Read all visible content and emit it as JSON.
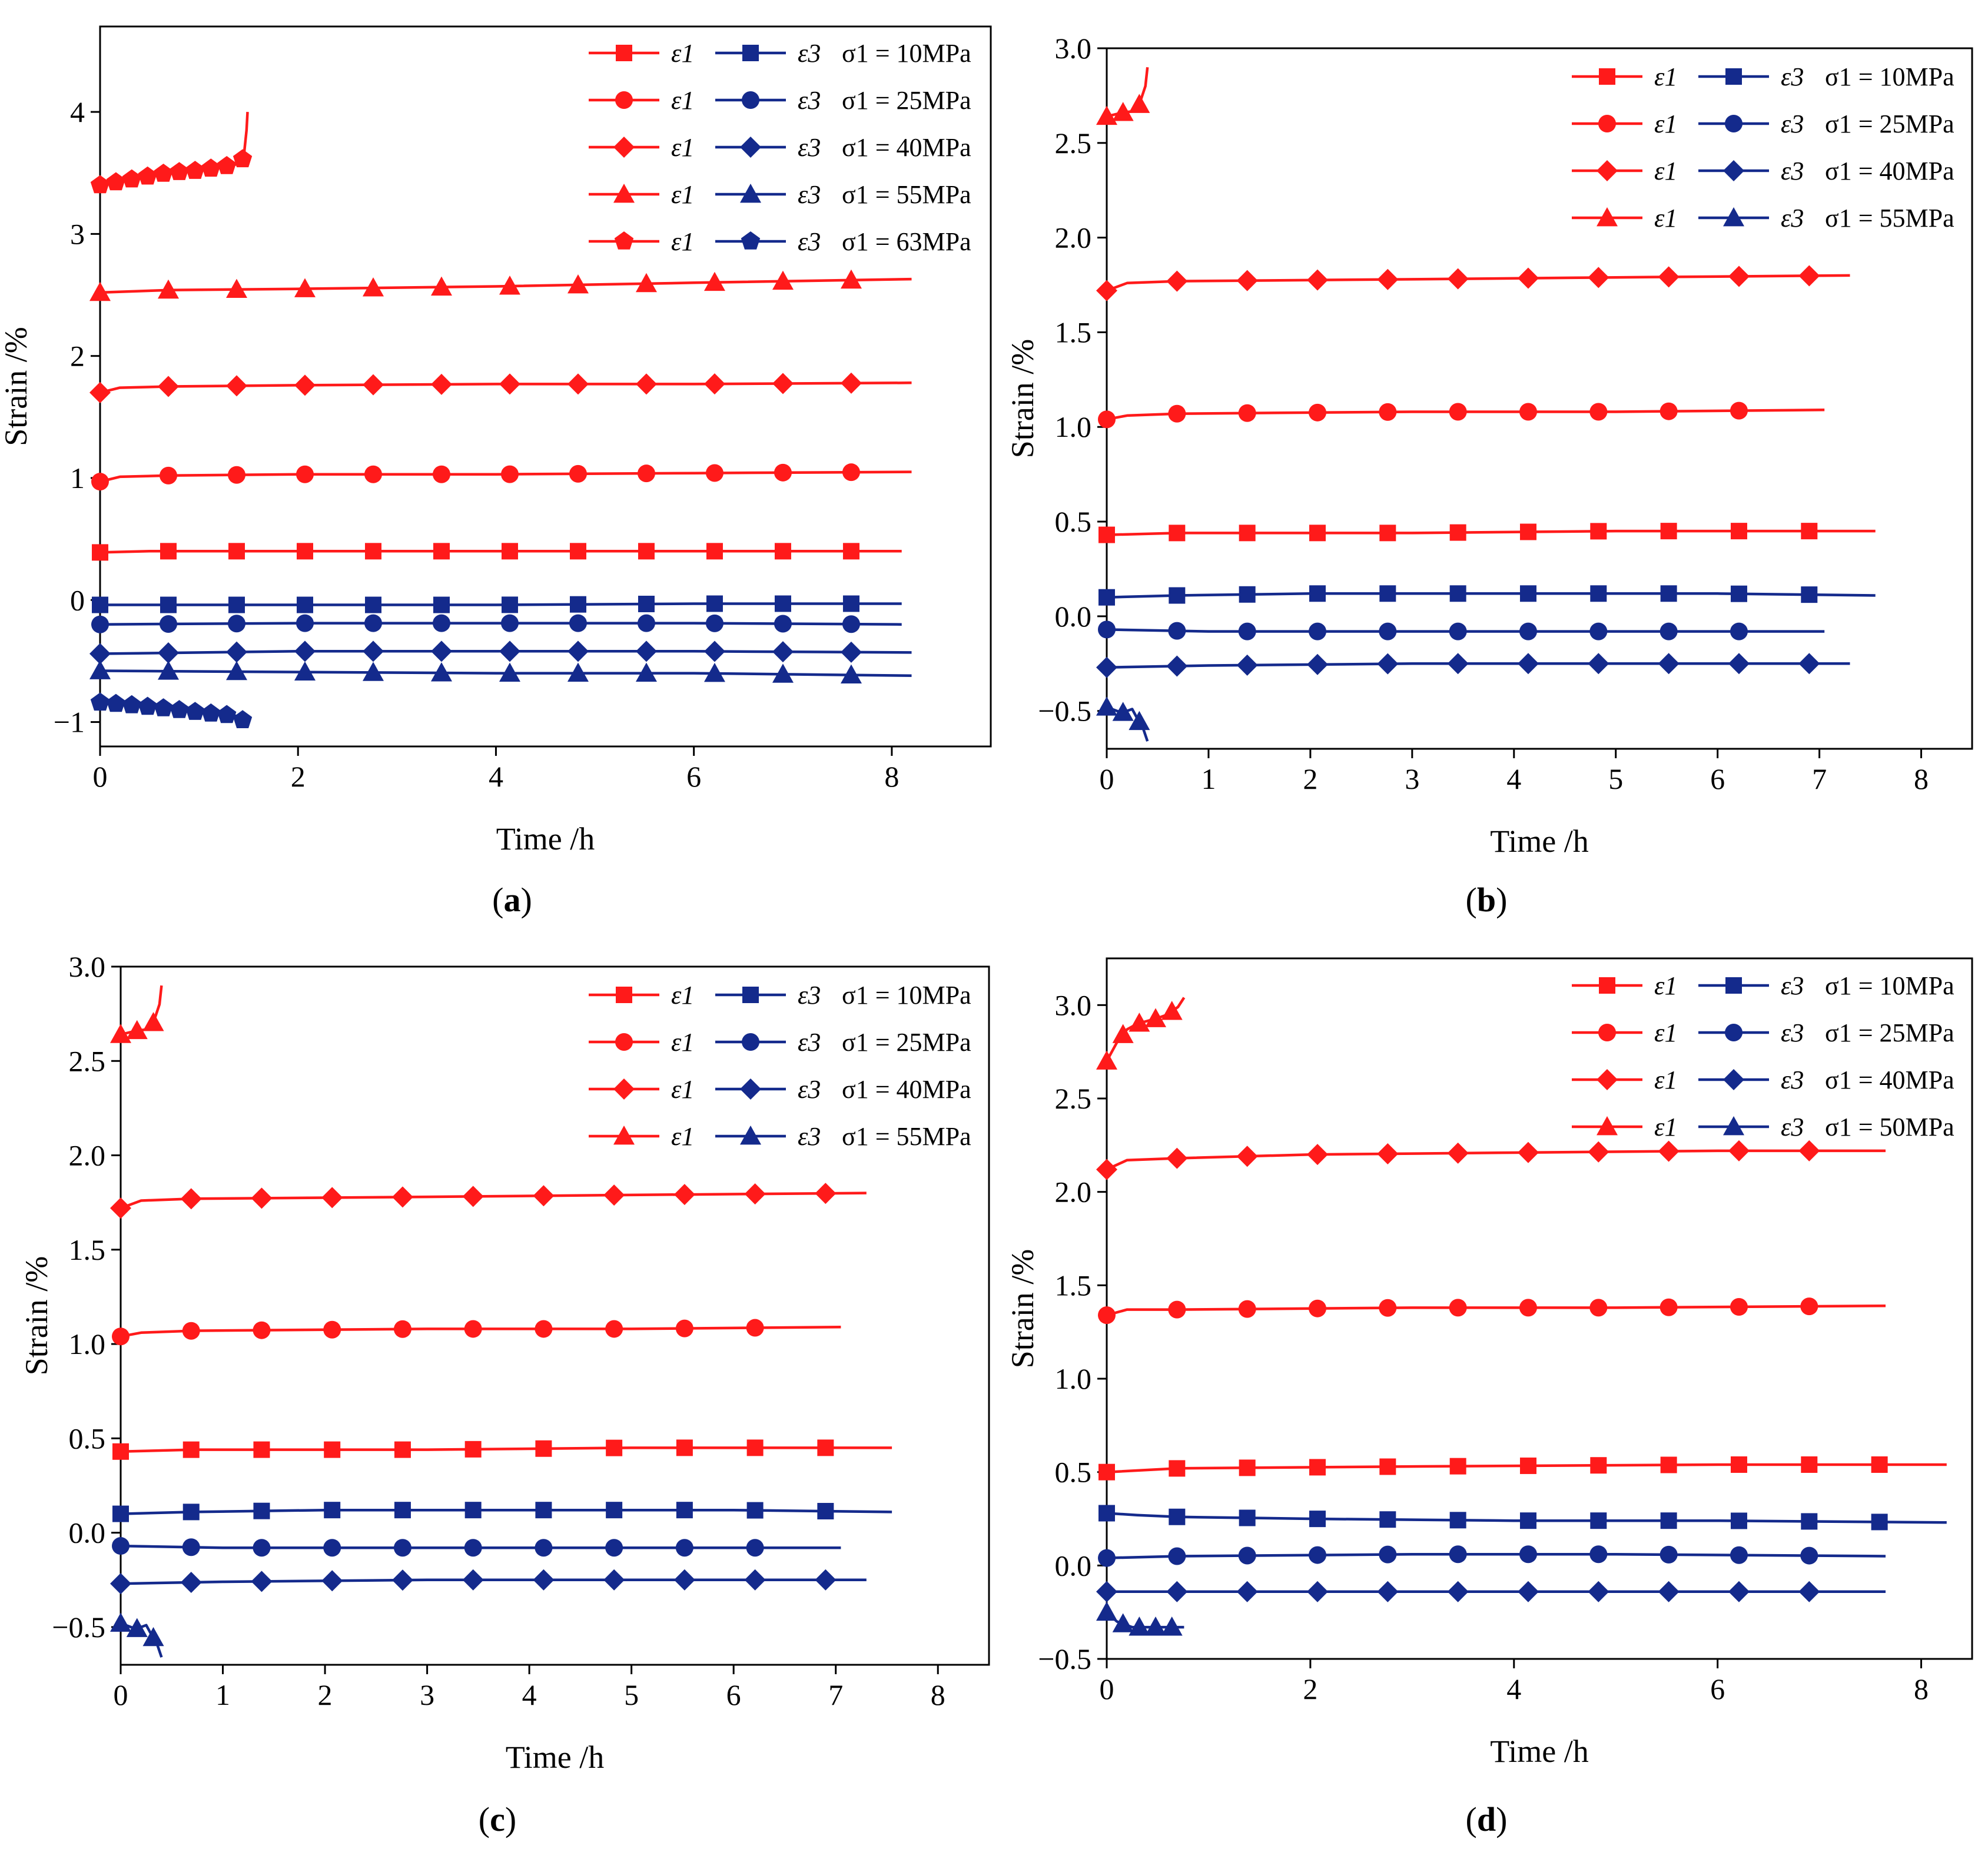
{
  "figure": {
    "colors": {
      "eps1": "#ff1a1a",
      "eps3": "#142a8c",
      "axis": "#000000"
    }
  },
  "chart_data": [
    {
      "id": "a",
      "panel_label": "a",
      "type": "line",
      "xlabel": "Time /h",
      "ylabel": "Strain /%",
      "xlim": [
        0,
        9.0
      ],
      "ylim": [
        -1.2,
        4.7
      ],
      "xticks": [
        "0",
        "2",
        "4",
        "6",
        "8"
      ],
      "yticks": [
        "−1",
        "0",
        "1",
        "2",
        "3",
        "4"
      ],
      "legend": [
        {
          "e1": "ε1",
          "e3": "ε3",
          "sigma": "σ1 = 10MPa",
          "marker": "square"
        },
        {
          "e1": "ε1",
          "e3": "ε3",
          "sigma": "σ1 = 25MPa",
          "marker": "circle"
        },
        {
          "e1": "ε1",
          "e3": "ε3",
          "sigma": "σ1 = 40MPa",
          "marker": "diamond"
        },
        {
          "e1": "ε1",
          "e3": "ε3",
          "sigma": "σ1 = 55MPa",
          "marker": "triangle"
        },
        {
          "e1": "ε1",
          "e3": "ε3",
          "sigma": "σ1 = 63MPa",
          "marker": "pentagon"
        }
      ],
      "series": [
        {
          "name": "ε1 σ1 = 10MPa",
          "kind": "e1",
          "marker": "square",
          "x": [
            0,
            0.5,
            2,
            4,
            6,
            8.1
          ],
          "y": [
            0.39,
            0.4,
            0.4,
            0.4,
            0.4,
            0.4
          ]
        },
        {
          "name": "ε1 σ1 = 25MPa",
          "kind": "e1",
          "marker": "circle",
          "x": [
            0,
            0.2,
            0.7,
            2,
            4,
            6,
            8.2
          ],
          "y": [
            0.97,
            1.01,
            1.02,
            1.03,
            1.03,
            1.04,
            1.05
          ]
        },
        {
          "name": "ε1 σ1 = 40MPa",
          "kind": "e1",
          "marker": "diamond",
          "x": [
            0,
            0.2,
            0.7,
            2,
            4,
            6,
            8.2
          ],
          "y": [
            1.7,
            1.74,
            1.75,
            1.76,
            1.77,
            1.77,
            1.78
          ]
        },
        {
          "name": "ε1 σ1 = 55MPa",
          "kind": "e1",
          "marker": "triangle",
          "x": [
            0,
            0.7,
            2,
            4,
            6,
            8.2
          ],
          "y": [
            2.52,
            2.54,
            2.55,
            2.57,
            2.6,
            2.63
          ]
        },
        {
          "name": "ε1 σ1 = 63MPa",
          "kind": "e1",
          "marker": "pentagon",
          "x": [
            0,
            0.2,
            0.68,
            1.0,
            1.38,
            1.45,
            1.48,
            1.49
          ],
          "y": [
            3.4,
            3.43,
            3.5,
            3.52,
            3.57,
            3.62,
            3.85,
            4.0
          ]
        },
        {
          "name": "ε3 σ1 = 10MPa",
          "kind": "e3",
          "marker": "square",
          "x": [
            0,
            2,
            4,
            6,
            8.1
          ],
          "y": [
            -0.04,
            -0.04,
            -0.04,
            -0.03,
            -0.03
          ]
        },
        {
          "name": "ε3 σ1 = 25MPa",
          "kind": "e3",
          "marker": "circle",
          "x": [
            0,
            2,
            4,
            6,
            8.1
          ],
          "y": [
            -0.2,
            -0.19,
            -0.19,
            -0.19,
            -0.2
          ]
        },
        {
          "name": "ε3 σ1 = 40MPa",
          "kind": "e3",
          "marker": "diamond",
          "x": [
            0,
            2,
            4,
            6,
            8.2
          ],
          "y": [
            -0.44,
            -0.42,
            -0.42,
            -0.42,
            -0.43
          ]
        },
        {
          "name": "ε3 σ1 = 55MPa",
          "kind": "e3",
          "marker": "triangle",
          "x": [
            0,
            2,
            4,
            6,
            8.2
          ],
          "y": [
            -0.58,
            -0.59,
            -0.6,
            -0.6,
            -0.62
          ]
        },
        {
          "name": "ε3 σ1 = 63MPa",
          "kind": "e3",
          "marker": "pentagon",
          "x": [
            0,
            0.3,
            0.68,
            1.0,
            1.38,
            1.45,
            1.49
          ],
          "y": [
            -0.84,
            -0.86,
            -0.89,
            -0.92,
            -0.95,
            -0.99,
            -1.03
          ]
        }
      ]
    },
    {
      "id": "b",
      "panel_label": "b",
      "type": "line",
      "xlabel": "Time /h",
      "ylabel": "Strain /%",
      "xlim": [
        0,
        8.5
      ],
      "ylim": [
        -0.7,
        3.0
      ],
      "xticks": [
        "0",
        "1",
        "2",
        "3",
        "4",
        "5",
        "6",
        "7",
        "8"
      ],
      "yticks": [
        "−0.5",
        "0.0",
        "0.5",
        "1.0",
        "1.5",
        "2.0",
        "2.5",
        "3.0"
      ],
      "legend": [
        {
          "e1": "ε1",
          "e3": "ε3",
          "sigma": "σ1 = 10MPa",
          "marker": "square"
        },
        {
          "e1": "ε1",
          "e3": "ε3",
          "sigma": "σ1 = 25MPa",
          "marker": "circle"
        },
        {
          "e1": "ε1",
          "e3": "ε3",
          "sigma": "σ1 = 40MPa",
          "marker": "diamond"
        },
        {
          "e1": "ε1",
          "e3": "ε3",
          "sigma": "σ1 = 55MPa",
          "marker": "triangle"
        }
      ],
      "series": [
        {
          "name": "ε1 σ1 = 10MPa",
          "kind": "e1",
          "marker": "square",
          "x": [
            0,
            0.7,
            3,
            5,
            7.55
          ],
          "y": [
            0.43,
            0.44,
            0.44,
            0.45,
            0.45
          ]
        },
        {
          "name": "ε1 σ1 = 25MPa",
          "kind": "e1",
          "marker": "circle",
          "x": [
            0,
            0.2,
            0.7,
            3,
            5,
            7.05
          ],
          "y": [
            1.04,
            1.06,
            1.07,
            1.08,
            1.08,
            1.09
          ]
        },
        {
          "name": "ε1 σ1 = 40MPa",
          "kind": "e1",
          "marker": "diamond",
          "x": [
            0,
            0.2,
            0.7,
            3,
            5,
            7.3
          ],
          "y": [
            1.72,
            1.76,
            1.77,
            1.78,
            1.79,
            1.8
          ]
        },
        {
          "name": "ε1 σ1 = 55MPa",
          "kind": "e1",
          "marker": "triangle",
          "x": [
            0,
            0.15,
            0.3,
            0.33,
            0.38,
            0.4
          ],
          "y": [
            2.64,
            2.66,
            2.67,
            2.72,
            2.8,
            2.9
          ]
        },
        {
          "name": "ε3 σ1 = 10MPa",
          "kind": "e3",
          "marker": "square",
          "x": [
            0,
            0.7,
            2,
            4,
            6,
            7.55
          ],
          "y": [
            0.1,
            0.11,
            0.12,
            0.12,
            0.12,
            0.11
          ]
        },
        {
          "name": "ε3 σ1 = 25MPa",
          "kind": "e3",
          "marker": "circle",
          "x": [
            0,
            1,
            3,
            5,
            7.05
          ],
          "y": [
            -0.07,
            -0.08,
            -0.08,
            -0.08,
            -0.08
          ]
        },
        {
          "name": "ε3 σ1 = 40MPa",
          "kind": "e3",
          "marker": "diamond",
          "x": [
            0,
            1,
            3,
            5,
            7.3
          ],
          "y": [
            -0.27,
            -0.26,
            -0.25,
            -0.25,
            -0.25
          ]
        },
        {
          "name": "ε3 σ1 = 55MPa",
          "kind": "e3",
          "marker": "triangle",
          "x": [
            0,
            0.15,
            0.25,
            0.3,
            0.35,
            0.4
          ],
          "y": [
            -0.48,
            -0.51,
            -0.49,
            -0.54,
            -0.58,
            -0.66
          ]
        }
      ]
    },
    {
      "id": "c",
      "panel_label": "c",
      "type": "line",
      "xlabel": "Time /h",
      "ylabel": "Strain /%",
      "xlim": [
        0,
        8.5
      ],
      "ylim": [
        -0.7,
        3.0
      ],
      "xticks": [
        "0",
        "1",
        "2",
        "3",
        "4",
        "5",
        "6",
        "7",
        "8"
      ],
      "yticks": [
        "−0.5",
        "0.0",
        "0.5",
        "1.0",
        "1.5",
        "2.0",
        "2.5",
        "3.0"
      ],
      "legend": [
        {
          "e1": "ε1",
          "e3": "ε3",
          "sigma": "σ1 = 10MPa",
          "marker": "square"
        },
        {
          "e1": "ε1",
          "e3": "ε3",
          "sigma": "σ1 = 25MPa",
          "marker": "circle"
        },
        {
          "e1": "ε1",
          "e3": "ε3",
          "sigma": "σ1 = 40MPa",
          "marker": "diamond"
        },
        {
          "e1": "ε1",
          "e3": "ε3",
          "sigma": "σ1 = 55MPa",
          "marker": "triangle"
        }
      ],
      "series": [
        {
          "name": "ε1 σ1 = 10MPa",
          "kind": "e1",
          "marker": "square",
          "x": [
            0,
            0.7,
            3,
            5,
            7.55
          ],
          "y": [
            0.43,
            0.44,
            0.44,
            0.45,
            0.45
          ]
        },
        {
          "name": "ε1 σ1 = 25MPa",
          "kind": "e1",
          "marker": "circle",
          "x": [
            0,
            0.2,
            0.7,
            3,
            5,
            7.05
          ],
          "y": [
            1.04,
            1.06,
            1.07,
            1.08,
            1.08,
            1.09
          ]
        },
        {
          "name": "ε1 σ1 = 40MPa",
          "kind": "e1",
          "marker": "diamond",
          "x": [
            0,
            0.2,
            0.7,
            3,
            5,
            7.3
          ],
          "y": [
            1.72,
            1.76,
            1.77,
            1.78,
            1.79,
            1.8
          ]
        },
        {
          "name": "ε1 σ1 = 55MPa",
          "kind": "e1",
          "marker": "triangle",
          "x": [
            0,
            0.15,
            0.3,
            0.33,
            0.38,
            0.4
          ],
          "y": [
            2.64,
            2.66,
            2.67,
            2.72,
            2.8,
            2.9
          ]
        },
        {
          "name": "ε3 σ1 = 10MPa",
          "kind": "e3",
          "marker": "square",
          "x": [
            0,
            0.7,
            2,
            4,
            6,
            7.55
          ],
          "y": [
            0.1,
            0.11,
            0.12,
            0.12,
            0.12,
            0.11
          ]
        },
        {
          "name": "ε3 σ1 = 25MPa",
          "kind": "e3",
          "marker": "circle",
          "x": [
            0,
            1,
            3,
            5,
            7.05
          ],
          "y": [
            -0.07,
            -0.08,
            -0.08,
            -0.08,
            -0.08
          ]
        },
        {
          "name": "ε3 σ1 = 40MPa",
          "kind": "e3",
          "marker": "diamond",
          "x": [
            0,
            1,
            3,
            5,
            7.3
          ],
          "y": [
            -0.27,
            -0.26,
            -0.25,
            -0.25,
            -0.25
          ]
        },
        {
          "name": "ε3 σ1 = 55MPa",
          "kind": "e3",
          "marker": "triangle",
          "x": [
            0,
            0.15,
            0.25,
            0.3,
            0.35,
            0.4
          ],
          "y": [
            -0.48,
            -0.51,
            -0.49,
            -0.54,
            -0.58,
            -0.66
          ]
        }
      ]
    },
    {
      "id": "d",
      "panel_label": "d",
      "type": "line",
      "xlabel": "Time /h",
      "ylabel": "Strain /%",
      "xlim": [
        0,
        8.5
      ],
      "ylim": [
        -0.5,
        3.25
      ],
      "xticks": [
        "0",
        "2",
        "4",
        "6",
        "8"
      ],
      "yticks": [
        "−0.5",
        "0.0",
        "0.5",
        "1.0",
        "1.5",
        "2.0",
        "2.5",
        "3.0"
      ],
      "legend": [
        {
          "e1": "ε1",
          "e3": "ε3",
          "sigma": "σ1 = 10MPa",
          "marker": "square"
        },
        {
          "e1": "ε1",
          "e3": "ε3",
          "sigma": "σ1 = 25MPa",
          "marker": "circle"
        },
        {
          "e1": "ε1",
          "e3": "ε3",
          "sigma": "σ1 = 40MPa",
          "marker": "diamond"
        },
        {
          "e1": "ε1",
          "e3": "ε3",
          "sigma": "σ1 = 50MPa",
          "marker": "triangle"
        }
      ],
      "series": [
        {
          "name": "ε1 σ1 = 10MPa",
          "kind": "e1",
          "marker": "square",
          "x": [
            0,
            0.7,
            3,
            6,
            8.25
          ],
          "y": [
            0.5,
            0.52,
            0.53,
            0.54,
            0.54
          ]
        },
        {
          "name": "ε1 σ1 = 25MPa",
          "kind": "e1",
          "marker": "circle",
          "x": [
            0,
            0.2,
            0.7,
            3,
            5,
            7.65
          ],
          "y": [
            1.34,
            1.37,
            1.37,
            1.38,
            1.38,
            1.39
          ]
        },
        {
          "name": "ε1 σ1 = 40MPa",
          "kind": "e1",
          "marker": "diamond",
          "x": [
            0,
            0.2,
            0.7,
            2,
            4,
            6,
            7.65
          ],
          "y": [
            2.12,
            2.17,
            2.18,
            2.2,
            2.21,
            2.22,
            2.22
          ]
        },
        {
          "name": "ε1 σ1 = 50MPa",
          "kind": "e1",
          "marker": "triangle",
          "x": [
            0,
            0.1,
            0.2,
            0.3,
            0.5,
            0.6,
            0.7,
            0.76
          ],
          "y": [
            2.7,
            2.8,
            2.87,
            2.9,
            2.93,
            2.95,
            2.99,
            3.04
          ]
        },
        {
          "name": "ε3 σ1 = 10MPa",
          "kind": "e3",
          "marker": "square",
          "x": [
            0,
            0.3,
            0.7,
            2,
            4,
            6,
            8.25
          ],
          "y": [
            0.28,
            0.27,
            0.26,
            0.25,
            0.24,
            0.24,
            0.23
          ]
        },
        {
          "name": "ε3 σ1 = 25MPa",
          "kind": "e3",
          "marker": "circle",
          "x": [
            0,
            0.7,
            3,
            5,
            7.65
          ],
          "y": [
            0.04,
            0.05,
            0.06,
            0.06,
            0.05
          ]
        },
        {
          "name": "ε3 σ1 = 40MPa",
          "kind": "e3",
          "marker": "diamond",
          "x": [
            0,
            0.7,
            3,
            5,
            7.65
          ],
          "y": [
            -0.14,
            -0.14,
            -0.14,
            -0.14,
            -0.14
          ]
        },
        {
          "name": "ε3 σ1 = 50MPa",
          "kind": "e3",
          "marker": "triangle",
          "x": [
            0,
            0.1,
            0.25,
            0.4,
            0.55,
            0.76
          ],
          "y": [
            -0.25,
            -0.3,
            -0.33,
            -0.33,
            -0.33,
            -0.33
          ]
        }
      ]
    }
  ]
}
